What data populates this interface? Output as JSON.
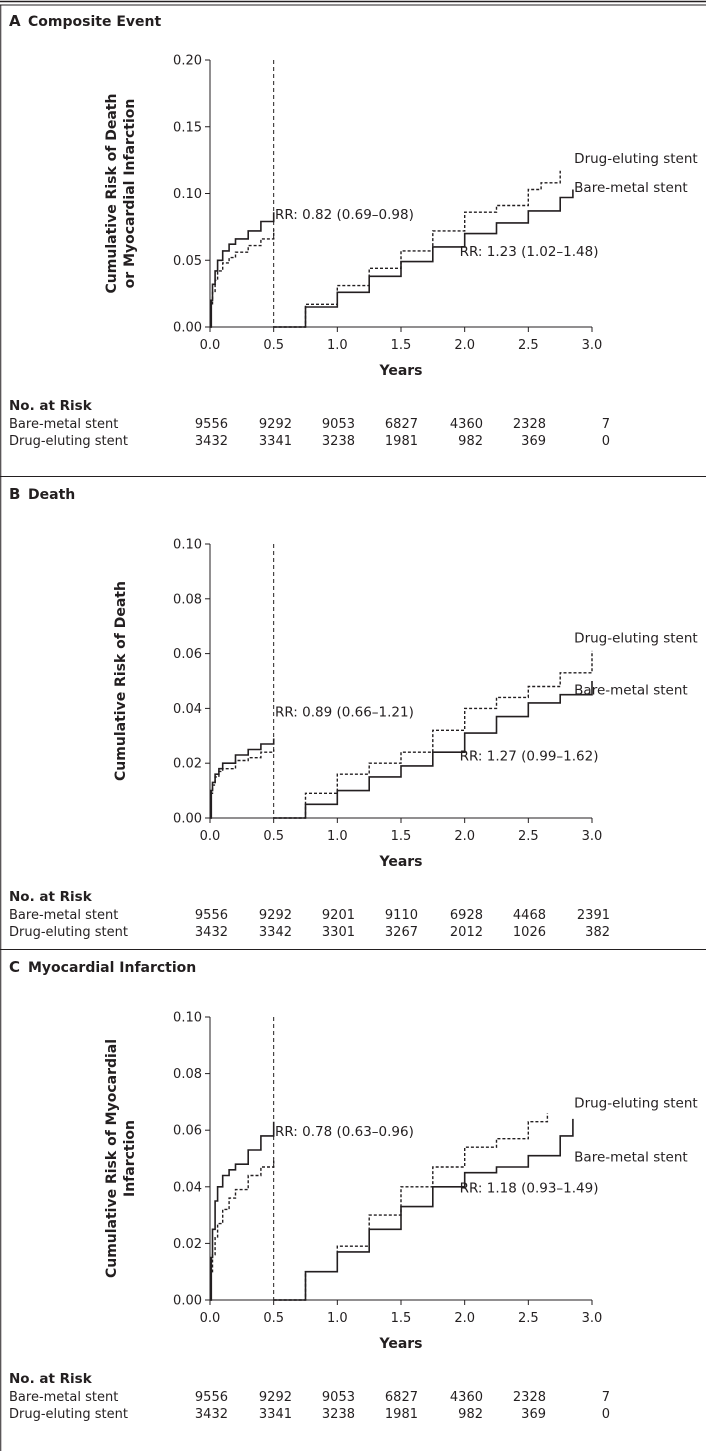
{
  "chart_data": [
    {
      "type": "line",
      "panel_letter": "A",
      "title": "Composite Event",
      "ylabel_lines": [
        "Cumulative Risk of Death",
        "or Myocardial Infarction"
      ],
      "xlabel": "Years",
      "ylim": [
        0,
        0.2
      ],
      "yticks": [
        0.0,
        0.05,
        0.1,
        0.15,
        0.2
      ],
      "ytick_labels": [
        "0.00",
        "0.05",
        "0.10",
        "0.15",
        "0.20"
      ],
      "xlim": [
        0,
        3.0
      ],
      "xticks": [
        0.0,
        0.5,
        1.0,
        1.5,
        2.0,
        2.5,
        3.0
      ],
      "xtick_labels": [
        "0.0",
        "0.5",
        "1.0",
        "1.5",
        "2.0",
        "2.5",
        "3.0"
      ],
      "landmark_x": 0.5,
      "series": [
        {
          "name": "Bare-metal stent",
          "style": "solid",
          "segments": [
            [
              [
                0,
                0
              ],
              [
                0.01,
                0.02
              ],
              [
                0.02,
                0.032
              ],
              [
                0.04,
                0.042
              ],
              [
                0.06,
                0.05
              ],
              [
                0.1,
                0.057
              ],
              [
                0.15,
                0.062
              ],
              [
                0.2,
                0.066
              ],
              [
                0.3,
                0.072
              ],
              [
                0.4,
                0.079
              ],
              [
                0.5,
                0.086
              ]
            ],
            [
              [
                0.5,
                0.0
              ],
              [
                0.75,
                0.015
              ],
              [
                1.0,
                0.026
              ],
              [
                1.25,
                0.038
              ],
              [
                1.5,
                0.049
              ],
              [
                1.75,
                0.06
              ],
              [
                2.0,
                0.07
              ],
              [
                2.25,
                0.078
              ],
              [
                2.5,
                0.087
              ],
              [
                2.75,
                0.097
              ],
              [
                2.85,
                0.103
              ]
            ]
          ]
        },
        {
          "name": "Drug-eluting stent",
          "style": "dashed",
          "segments": [
            [
              [
                0,
                0
              ],
              [
                0.01,
                0.016
              ],
              [
                0.02,
                0.026
              ],
              [
                0.04,
                0.035
              ],
              [
                0.06,
                0.042
              ],
              [
                0.1,
                0.048
              ],
              [
                0.15,
                0.052
              ],
              [
                0.2,
                0.056
              ],
              [
                0.3,
                0.061
              ],
              [
                0.4,
                0.066
              ],
              [
                0.5,
                0.073
              ]
            ],
            [
              [
                0.5,
                0.0
              ],
              [
                0.75,
                0.017
              ],
              [
                1.0,
                0.031
              ],
              [
                1.25,
                0.044
              ],
              [
                1.5,
                0.057
              ],
              [
                1.75,
                0.072
              ],
              [
                2.0,
                0.086
              ],
              [
                2.25,
                0.091
              ],
              [
                2.5,
                0.103
              ],
              [
                2.6,
                0.108
              ],
              [
                2.75,
                0.117
              ]
            ]
          ]
        }
      ],
      "annotations": [
        {
          "text": "RR: 0.82 (0.69–0.98)",
          "x": 0.51,
          "y": 0.081
        },
        {
          "text": "RR: 1.23 (1.02–1.48)",
          "x": 1.96,
          "y": 0.053
        }
      ],
      "series_labels": [
        {
          "text": "Drug-eluting stent",
          "x": 2.86,
          "y": 0.123
        },
        {
          "text": "Bare-metal stent",
          "x": 2.86,
          "y": 0.101
        }
      ],
      "number_at_risk": {
        "header": "No. at Risk",
        "rows": [
          {
            "name": "Bare-metal stent",
            "values": [
              "9556",
              "9292",
              "9053",
              "6827",
              "4360",
              "2328",
              "7"
            ]
          },
          {
            "name": "Drug-eluting stent",
            "values": [
              "3432",
              "3341",
              "3238",
              "1981",
              "982",
              "369",
              "0"
            ]
          }
        ]
      }
    },
    {
      "type": "line",
      "panel_letter": "B",
      "title": "Death",
      "ylabel_lines": [
        "Cumulative Risk of Death"
      ],
      "xlabel": "Years",
      "ylim": [
        0,
        0.1
      ],
      "yticks": [
        0.0,
        0.02,
        0.04,
        0.06,
        0.08,
        0.1
      ],
      "ytick_labels": [
        "0.00",
        "0.02",
        "0.04",
        "0.06",
        "0.08",
        "0.10"
      ],
      "xlim": [
        0,
        3.0
      ],
      "xticks": [
        0.0,
        0.5,
        1.0,
        1.5,
        2.0,
        2.5,
        3.0
      ],
      "xtick_labels": [
        "0.0",
        "0.5",
        "1.0",
        "1.5",
        "2.0",
        "2.5",
        "3.0"
      ],
      "landmark_x": 0.5,
      "series": [
        {
          "name": "Bare-metal stent",
          "style": "solid",
          "segments": [
            [
              [
                0,
                0
              ],
              [
                0.01,
                0.01
              ],
              [
                0.02,
                0.013
              ],
              [
                0.04,
                0.016
              ],
              [
                0.07,
                0.018
              ],
              [
                0.1,
                0.02
              ],
              [
                0.2,
                0.023
              ],
              [
                0.3,
                0.025
              ],
              [
                0.4,
                0.027
              ],
              [
                0.5,
                0.029
              ]
            ],
            [
              [
                0.5,
                0.0
              ],
              [
                0.75,
                0.005
              ],
              [
                1.0,
                0.01
              ],
              [
                1.25,
                0.015
              ],
              [
                1.5,
                0.019
              ],
              [
                1.75,
                0.024
              ],
              [
                2.0,
                0.031
              ],
              [
                2.25,
                0.037
              ],
              [
                2.5,
                0.042
              ],
              [
                2.75,
                0.045
              ],
              [
                3.0,
                0.05
              ]
            ]
          ]
        },
        {
          "name": "Drug-eluting stent",
          "style": "dashed",
          "segments": [
            [
              [
                0,
                0
              ],
              [
                0.01,
                0.009
              ],
              [
                0.02,
                0.012
              ],
              [
                0.04,
                0.015
              ],
              [
                0.07,
                0.017
              ],
              [
                0.1,
                0.018
              ],
              [
                0.2,
                0.021
              ],
              [
                0.3,
                0.022
              ],
              [
                0.4,
                0.024
              ],
              [
                0.5,
                0.025
              ]
            ],
            [
              [
                0.5,
                0.0
              ],
              [
                0.75,
                0.009
              ],
              [
                1.0,
                0.016
              ],
              [
                1.25,
                0.02
              ],
              [
                1.5,
                0.024
              ],
              [
                1.75,
                0.032
              ],
              [
                2.0,
                0.04
              ],
              [
                2.25,
                0.044
              ],
              [
                2.5,
                0.048
              ],
              [
                2.75,
                0.053
              ],
              [
                3.0,
                0.061
              ]
            ]
          ]
        }
      ],
      "annotations": [
        {
          "text": "RR: 0.89 (0.66–1.21)",
          "x": 0.51,
          "y": 0.037
        },
        {
          "text": "RR: 1.27 (0.99–1.62)",
          "x": 1.96,
          "y": 0.021
        }
      ],
      "series_labels": [
        {
          "text": "Drug-eluting stent",
          "x": 2.86,
          "y": 0.064
        },
        {
          "text": "Bare-metal stent",
          "x": 2.86,
          "y": 0.045
        }
      ],
      "number_at_risk": {
        "header": "No. at Risk",
        "rows": [
          {
            "name": "Bare-metal stent",
            "values": [
              "9556",
              "9292",
              "9201",
              "9110",
              "6928",
              "4468",
              "2391"
            ]
          },
          {
            "name": "Drug-eluting stent",
            "values": [
              "3432",
              "3342",
              "3301",
              "3267",
              "2012",
              "1026",
              "382"
            ]
          }
        ]
      }
    },
    {
      "type": "line",
      "panel_letter": "C",
      "title": "Myocardial Infarction",
      "ylabel_lines": [
        "Cumulative Risk of Myocardial",
        "Infarction"
      ],
      "xlabel": "Years",
      "ylim": [
        0,
        0.1
      ],
      "yticks": [
        0.0,
        0.02,
        0.04,
        0.06,
        0.08,
        0.1
      ],
      "ytick_labels": [
        "0.00",
        "0.02",
        "0.04",
        "0.06",
        "0.08",
        "0.10"
      ],
      "xlim": [
        0,
        3.0
      ],
      "xticks": [
        0.0,
        0.5,
        1.0,
        1.5,
        2.0,
        2.5,
        3.0
      ],
      "xtick_labels": [
        "0.0",
        "0.5",
        "1.0",
        "1.5",
        "2.0",
        "2.5",
        "3.0"
      ],
      "landmark_x": 0.5,
      "series": [
        {
          "name": "Bare-metal stent",
          "style": "solid",
          "segments": [
            [
              [
                0,
                0
              ],
              [
                0.01,
                0.015
              ],
              [
                0.02,
                0.025
              ],
              [
                0.04,
                0.035
              ],
              [
                0.06,
                0.04
              ],
              [
                0.1,
                0.044
              ],
              [
                0.15,
                0.046
              ],
              [
                0.2,
                0.048
              ],
              [
                0.3,
                0.053
              ],
              [
                0.4,
                0.058
              ],
              [
                0.5,
                0.063
              ]
            ],
            [
              [
                0.5,
                0.0
              ],
              [
                0.75,
                0.01
              ],
              [
                1.0,
                0.017
              ],
              [
                1.25,
                0.025
              ],
              [
                1.5,
                0.033
              ],
              [
                1.75,
                0.04
              ],
              [
                2.0,
                0.045
              ],
              [
                2.25,
                0.047
              ],
              [
                2.5,
                0.051
              ],
              [
                2.75,
                0.058
              ],
              [
                2.85,
                0.064
              ]
            ]
          ]
        },
        {
          "name": "Drug-eluting stent",
          "style": "dashed",
          "segments": [
            [
              [
                0,
                0
              ],
              [
                0.01,
                0.01
              ],
              [
                0.02,
                0.016
              ],
              [
                0.04,
                0.022
              ],
              [
                0.06,
                0.027
              ],
              [
                0.1,
                0.032
              ],
              [
                0.15,
                0.036
              ],
              [
                0.2,
                0.039
              ],
              [
                0.3,
                0.044
              ],
              [
                0.4,
                0.047
              ],
              [
                0.5,
                0.05
              ]
            ],
            [
              [
                0.5,
                0.0
              ],
              [
                0.75,
                0.01
              ],
              [
                1.0,
                0.019
              ],
              [
                1.25,
                0.03
              ],
              [
                1.5,
                0.04
              ],
              [
                1.75,
                0.047
              ],
              [
                2.0,
                0.054
              ],
              [
                2.25,
                0.057
              ],
              [
                2.5,
                0.063
              ],
              [
                2.65,
                0.066
              ]
            ]
          ]
        }
      ],
      "annotations": [
        {
          "text": "RR: 0.78 (0.63–0.96)",
          "x": 0.51,
          "y": 0.058
        },
        {
          "text": "RR: 1.18 (0.93–1.49)",
          "x": 1.96,
          "y": 0.038
        }
      ],
      "series_labels": [
        {
          "text": "Drug-eluting stent",
          "x": 2.86,
          "y": 0.068
        },
        {
          "text": "Bare-metal stent",
          "x": 2.86,
          "y": 0.049
        }
      ],
      "number_at_risk": {
        "header": "No. at Risk",
        "rows": [
          {
            "name": "Bare-metal stent",
            "values": [
              "9556",
              "9292",
              "9053",
              "6827",
              "4360",
              "2328",
              "7"
            ]
          },
          {
            "name": "Drug-eluting stent",
            "values": [
              "3432",
              "3341",
              "3238",
              "1981",
              "982",
              "369",
              "0"
            ]
          }
        ]
      }
    }
  ]
}
